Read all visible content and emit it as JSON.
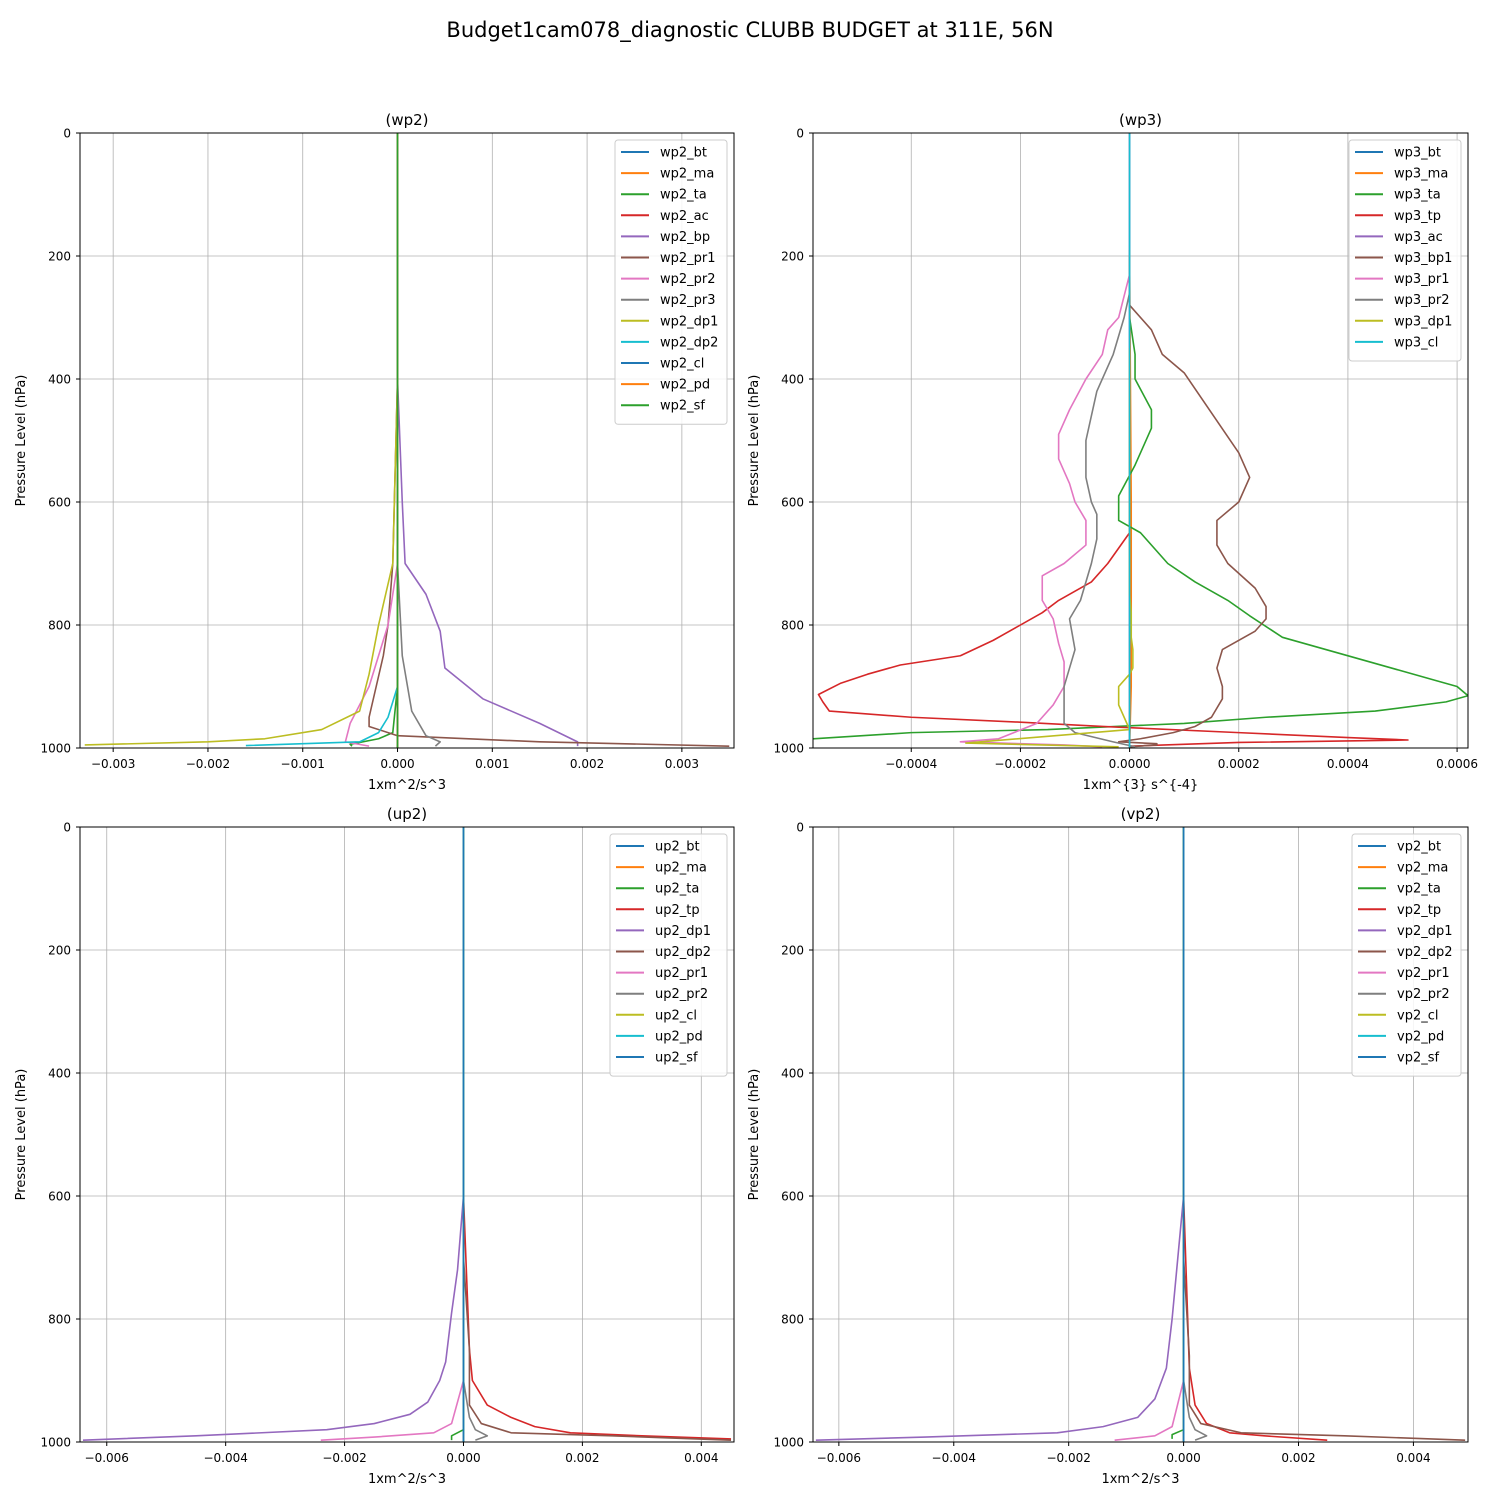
{
  "figure_title": "Budget1cam078_diagnostic CLUBB BUDGET at 311E, 56N",
  "colors": [
    "#1f77b4",
    "#ff7f0e",
    "#2ca02c",
    "#d62728",
    "#9467bd",
    "#8c564b",
    "#e377c2",
    "#7f7f7f",
    "#bcbd22",
    "#17becf"
  ],
  "chart_data": [
    {
      "type": "line",
      "title": "(wp2)",
      "xlabel": "1xm^2/s^3",
      "ylabel": "Pressure Level (hPa)",
      "xlim": [
        -0.00335,
        0.00355
      ],
      "ylim": [
        1000,
        0
      ],
      "xticks": [
        -0.003,
        -0.002,
        -0.001,
        0.0,
        0.001,
        0.002,
        0.003
      ],
      "xtick_labels": [
        "−0.003",
        "−0.002",
        "−0.001",
        "0.000",
        "0.001",
        "0.002",
        "0.003"
      ],
      "yticks": [
        0,
        200,
        400,
        600,
        800,
        1000
      ],
      "ytick_labels": [
        "0",
        "200",
        "400",
        "600",
        "800",
        "1000"
      ],
      "grid": true,
      "legend_position": "upper-right",
      "series": [
        {
          "name": "wp2_bt",
          "x": [
            0,
            0
          ],
          "y": [
            0,
            1000
          ]
        },
        {
          "name": "wp2_ma",
          "x": [
            0,
            0
          ],
          "y": [
            0,
            1000
          ]
        },
        {
          "name": "wp2_ta",
          "x": [
            0,
            0,
            -5e-05,
            -0.0002,
            -0.0005,
            -0.00048
          ],
          "y": [
            0,
            900,
            975,
            985,
            994,
            997
          ]
        },
        {
          "name": "wp2_ac",
          "x": [
            0,
            0,
            0
          ],
          "y": [
            0,
            990,
            1000
          ]
        },
        {
          "name": "wp2_bp",
          "x": [
            0,
            5e-05,
            8e-05,
            0.0003,
            0.00045,
            0.0005,
            0.0009,
            0.0015,
            0.0019,
            0.0019
          ],
          "y": [
            400,
            600,
            700,
            750,
            810,
            870,
            920,
            960,
            990,
            997
          ]
        },
        {
          "name": "wp2_pr1",
          "x": [
            0,
            -5e-05,
            -0.0001,
            -0.00015,
            -0.0003,
            -0.0003,
            0,
            0.0015,
            0.0035
          ],
          "y": [
            400,
            700,
            800,
            850,
            950,
            965,
            980,
            990,
            997
          ]
        },
        {
          "name": "wp2_pr2",
          "x": [
            0,
            -0.0001,
            -0.0003,
            -0.0005,
            -0.00055,
            -0.0003
          ],
          "y": [
            700,
            800,
            900,
            960,
            990,
            997
          ]
        },
        {
          "name": "wp2_pr3",
          "x": [
            0,
            5e-05,
            0.00015,
            0.0003,
            0.00045,
            0.0004
          ],
          "y": [
            700,
            850,
            940,
            980,
            990,
            997
          ]
        },
        {
          "name": "wp2_dp1",
          "x": [
            0,
            -5e-05,
            -0.0002,
            -0.0003,
            -0.0004,
            -0.0008,
            -0.0014,
            -0.002,
            -0.0033
          ],
          "y": [
            400,
            700,
            800,
            880,
            940,
            970,
            985,
            990,
            995
          ]
        },
        {
          "name": "wp2_dp2",
          "x": [
            0,
            0,
            -0.0001,
            -0.0002,
            -0.0004,
            -0.0016
          ],
          "y": [
            0,
            900,
            950,
            975,
            990,
            996
          ]
        },
        {
          "name": "wp2_cl",
          "x": [
            0,
            0
          ],
          "y": [
            0,
            1000
          ]
        },
        {
          "name": "wp2_pd",
          "x": [
            0,
            0
          ],
          "y": [
            0,
            1000
          ]
        },
        {
          "name": "wp2_sf",
          "x": [
            0,
            0
          ],
          "y": [
            0,
            1000
          ]
        }
      ]
    },
    {
      "type": "line",
      "title": "(wp3)",
      "xlabel": "1xm^{3} s^{-4}",
      "ylabel": "Pressure Level (hPa)",
      "xlim": [
        -0.00058,
        0.00062
      ],
      "ylim": [
        1000,
        0
      ],
      "xticks": [
        -0.0004,
        -0.0002,
        0.0,
        0.0002,
        0.0004,
        0.0006
      ],
      "xtick_labels": [
        "−0.0004",
        "−0.0002",
        "0.0000",
        "0.0002",
        "0.0004",
        "0.0006"
      ],
      "yticks": [
        0,
        200,
        400,
        600,
        800,
        1000
      ],
      "ytick_labels": [
        "0",
        "200",
        "400",
        "600",
        "800",
        "1000"
      ],
      "grid": true,
      "legend_position": "upper-right",
      "series": [
        {
          "name": "wp3_bt",
          "x": [
            0,
            0
          ],
          "y": [
            0,
            1000
          ]
        },
        {
          "name": "wp3_ma",
          "x": [
            0,
            3e-06,
            3e-06,
            0
          ],
          "y": [
            200,
            600,
            900,
            1000
          ]
        },
        {
          "name": "wp3_ta",
          "x": [
            0,
            1e-05,
            1e-05,
            4e-05,
            4e-05,
            1e-05,
            -2e-05,
            -2e-05,
            2e-05,
            7e-05,
            0.00012,
            0.00018,
            0.00022,
            0.00028,
            0.00038,
            0.00048,
            0.00056,
            0.0006,
            0.00062,
            0.00058,
            0.00045,
            0.00025,
            0.0001,
            -0.00015,
            -0.0004,
            -0.00058
          ],
          "y": [
            300,
            360,
            400,
            450,
            480,
            540,
            590,
            630,
            650,
            700,
            730,
            760,
            785,
            820,
            845,
            870,
            890,
            900,
            915,
            925,
            940,
            950,
            960,
            970,
            975,
            985
          ]
        },
        {
          "name": "wp3_tp",
          "x": [
            0,
            -4e-05,
            -7e-05,
            -0.00013,
            -0.00016,
            -0.00025,
            -0.00031,
            -0.00042,
            -0.00048,
            -0.00053,
            -0.00057,
            -0.000562,
            -0.00055,
            -0.0004,
            -0.0002,
            -5e-05,
            0.0002,
            0.0004,
            0.00051,
            0.0002,
            0
          ],
          "y": [
            650,
            700,
            730,
            760,
            780,
            825,
            850,
            865,
            880,
            895,
            913,
            925,
            940,
            950,
            958,
            965,
            975,
            983,
            987,
            991,
            997
          ]
        },
        {
          "name": "wp3_ac",
          "x": [
            0,
            0
          ],
          "y": [
            0,
            1000
          ]
        },
        {
          "name": "wp3_bp1",
          "x": [
            0,
            4e-05,
            6e-05,
            0.0001,
            0.0002,
            0.00022,
            0.0002,
            0.00016,
            0.00016,
            0.00018,
            0.00023,
            0.00025,
            0.00025,
            0.00023,
            0.00017,
            0.00016,
            0.00017,
            0.00017,
            0.00015,
            0.00012,
            8e-05,
            2e-05,
            -2e-05,
            5e-05,
            5e-05,
            0
          ],
          "y": [
            280,
            320,
            360,
            390,
            520,
            560,
            600,
            630,
            670,
            700,
            740,
            770,
            790,
            810,
            840,
            870,
            900,
            920,
            950,
            965,
            975,
            985,
            990,
            993,
            995,
            998
          ]
        },
        {
          "name": "wp3_pr1",
          "x": [
            0,
            -2e-05,
            -4e-05,
            -5e-05,
            -8e-05,
            -0.00011,
            -0.00013,
            -0.00013,
            -0.00011,
            -0.0001,
            -8e-05,
            -8e-05,
            -0.00012,
            -0.00016,
            -0.00016,
            -0.00014,
            -0.00013,
            -0.00012,
            -0.00012,
            -0.00014,
            -0.00017,
            -0.00024,
            -0.00031,
            -0.00012,
            -5e-05
          ],
          "y": [
            230,
            300,
            320,
            360,
            400,
            450,
            490,
            530,
            570,
            600,
            630,
            670,
            700,
            720,
            760,
            790,
            830,
            860,
            900,
            930,
            960,
            985,
            990,
            995,
            998
          ]
        },
        {
          "name": "wp3_pr2",
          "x": [
            0,
            0,
            -1e-05,
            -3e-05,
            -6e-05,
            -8e-05,
            -8e-05,
            -7e-05,
            -6e-05,
            -6e-05,
            -7e-05,
            -9e-05,
            -0.00011,
            -0.0001,
            -0.00011,
            -0.00012,
            -0.00012,
            -0.00012,
            -0.0001,
            -3e-05,
            1e-05
          ],
          "y": [
            190,
            260,
            300,
            360,
            420,
            500,
            560,
            600,
            620,
            660,
            700,
            760,
            790,
            840,
            870,
            900,
            930,
            960,
            975,
            990,
            998
          ]
        },
        {
          "name": "wp3_dp1",
          "x": [
            0,
            0,
            3e-06,
            3e-06,
            6e-06,
            6e-06,
            0,
            -2e-05,
            -2e-05,
            -1e-05,
            0,
            -0.0003,
            -2e-05
          ],
          "y": [
            350,
            750,
            780,
            820,
            840,
            870,
            880,
            900,
            930,
            950,
            970,
            992,
            998
          ]
        },
        {
          "name": "wp3_cl",
          "x": [
            0,
            0
          ],
          "y": [
            0,
            1000
          ]
        }
      ]
    },
    {
      "type": "line",
      "title": "(up2)",
      "xlabel": "1xm^2/s^3",
      "ylabel": "Pressure Level (hPa)",
      "xlim": [
        -0.00645,
        0.00455
      ],
      "ylim": [
        1000,
        0
      ],
      "xticks": [
        -0.006,
        -0.004,
        -0.002,
        0.0,
        0.002,
        0.004
      ],
      "xtick_labels": [
        "−0.006",
        "−0.004",
        "−0.002",
        "0.000",
        "0.002",
        "0.004"
      ],
      "yticks": [
        0,
        200,
        400,
        600,
        800,
        1000
      ],
      "ytick_labels": [
        "0",
        "200",
        "400",
        "600",
        "800",
        "1000"
      ],
      "grid": true,
      "legend_position": "upper-right",
      "series": [
        {
          "name": "up2_bt",
          "x": [
            0,
            0
          ],
          "y": [
            0,
            1000
          ]
        },
        {
          "name": "up2_ma",
          "x": [
            0,
            0
          ],
          "y": [
            0,
            1000
          ]
        },
        {
          "name": "up2_ta",
          "x": [
            0,
            0,
            -0.0002,
            -0.0002
          ],
          "y": [
            0,
            980,
            990,
            997
          ]
        },
        {
          "name": "up2_tp",
          "x": [
            0,
            0.0001,
            0.00015,
            0.0004,
            0.0008,
            0.0012,
            0.0018,
            0.003,
            0.0045
          ],
          "y": [
            600,
            850,
            900,
            940,
            960,
            975,
            985,
            990,
            995
          ]
        },
        {
          "name": "up2_dp1",
          "x": [
            0,
            -0.0001,
            -0.0002,
            -0.0003,
            -0.0004,
            -0.0006,
            -0.0009,
            -0.0015,
            -0.0023,
            -0.0045,
            -0.0064
          ],
          "y": [
            600,
            720,
            790,
            870,
            900,
            935,
            955,
            970,
            980,
            990,
            997
          ]
        },
        {
          "name": "up2_dp2",
          "x": [
            0,
            0.0001,
            0.0001,
            0.0003,
            0.0008,
            0.0025,
            0.0045
          ],
          "y": [
            700,
            850,
            940,
            970,
            985,
            990,
            997
          ]
        },
        {
          "name": "up2_pr1",
          "x": [
            0,
            -0.0002,
            -0.0005,
            -0.0015,
            -0.0024
          ],
          "y": [
            900,
            970,
            985,
            992,
            997
          ]
        },
        {
          "name": "up2_pr2",
          "x": [
            0,
            0.0001,
            0.0002,
            0.0004,
            0.0002
          ],
          "y": [
            900,
            960,
            980,
            990,
            997
          ]
        },
        {
          "name": "up2_cl",
          "x": [
            0,
            0
          ],
          "y": [
            0,
            1000
          ]
        },
        {
          "name": "up2_pd",
          "x": [
            0,
            0
          ],
          "y": [
            0,
            1000
          ]
        },
        {
          "name": "up2_sf",
          "x": [
            0,
            0
          ],
          "y": [
            0,
            1000
          ]
        }
      ]
    },
    {
      "type": "line",
      "title": "(vp2)",
      "xlabel": "1xm^2/s^3",
      "ylabel": "Pressure Level (hPa)",
      "xlim": [
        -0.00645,
        0.00495
      ],
      "ylim": [
        1000,
        0
      ],
      "xticks": [
        -0.006,
        -0.004,
        -0.002,
        0.0,
        0.002,
        0.004
      ],
      "xtick_labels": [
        "−0.006",
        "−0.004",
        "−0.002",
        "0.000",
        "0.002",
        "0.004"
      ],
      "yticks": [
        0,
        200,
        400,
        600,
        800,
        1000
      ],
      "ytick_labels": [
        "0",
        "200",
        "400",
        "600",
        "800",
        "1000"
      ],
      "grid": true,
      "legend_position": "upper-right",
      "series": [
        {
          "name": "vp2_bt",
          "x": [
            0,
            0
          ],
          "y": [
            0,
            1000
          ]
        },
        {
          "name": "vp2_ma",
          "x": [
            0,
            0
          ],
          "y": [
            0,
            1000
          ]
        },
        {
          "name": "vp2_ta",
          "x": [
            0,
            0,
            -0.0002,
            -0.0002
          ],
          "y": [
            0,
            980,
            988,
            995
          ]
        },
        {
          "name": "vp2_tp",
          "x": [
            0,
            0.0001,
            0.0002,
            0.0004,
            0.0008,
            0.0014,
            0.0025
          ],
          "y": [
            600,
            880,
            940,
            970,
            985,
            990,
            997
          ]
        },
        {
          "name": "vp2_dp1",
          "x": [
            0,
            -0.0001,
            -0.0002,
            -0.0003,
            -0.0005,
            -0.0008,
            -0.0014,
            -0.0022,
            -0.0045,
            -0.0064
          ],
          "y": [
            600,
            700,
            800,
            880,
            930,
            960,
            975,
            985,
            992,
            997
          ]
        },
        {
          "name": "vp2_dp2",
          "x": [
            0,
            0.0001,
            0.0001,
            0.0003,
            0.001,
            0.0028,
            0.0049
          ],
          "y": [
            700,
            860,
            940,
            970,
            985,
            990,
            997
          ]
        },
        {
          "name": "vp2_pr1",
          "x": [
            0,
            -0.0002,
            -0.0005,
            -0.0012
          ],
          "y": [
            900,
            975,
            990,
            997
          ]
        },
        {
          "name": "vp2_pr2",
          "x": [
            0,
            0.0001,
            0.0002,
            0.0004,
            0.0002
          ],
          "y": [
            900,
            960,
            980,
            990,
            997
          ]
        },
        {
          "name": "vp2_cl",
          "x": [
            0,
            0
          ],
          "y": [
            0,
            1000
          ]
        },
        {
          "name": "vp2_pd",
          "x": [
            0,
            0
          ],
          "y": [
            0,
            1000
          ]
        },
        {
          "name": "vp2_sf",
          "x": [
            0,
            0
          ],
          "y": [
            0,
            1000
          ]
        }
      ]
    }
  ]
}
